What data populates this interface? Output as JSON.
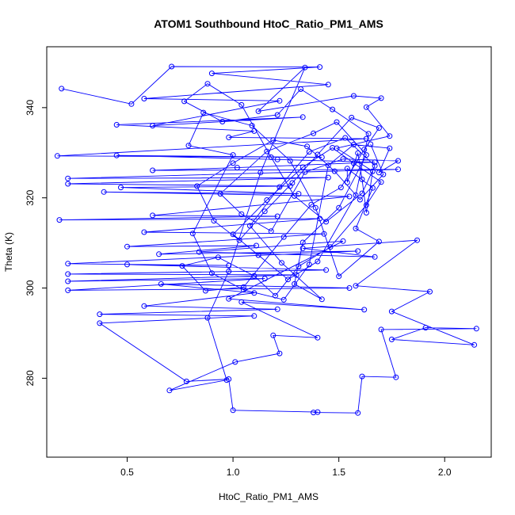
{
  "chart_data": {
    "type": "scatter",
    "title": "ATOM1 Southbound HtoC_Ratio_PM1_AMS",
    "xlabel": "HtoC_Ratio_PM1_AMS",
    "ylabel": "Theta (K)",
    "xlim": [
      0.12,
      2.22
    ],
    "ylim": [
      262.5,
      353.5
    ],
    "x_ticks": [
      0.5,
      1.0,
      1.5,
      2.0
    ],
    "x_tick_labels": [
      "0.5",
      "1.0",
      "1.5",
      "2.0"
    ],
    "y_ticks": [
      280,
      300,
      320,
      340
    ],
    "y_tick_labels": [
      "280",
      "300",
      "320",
      "340"
    ],
    "grid": false,
    "legend": "none",
    "connected": true,
    "color": "#0000ff",
    "series": [
      {
        "points": [
          [
            0.19,
            344.2
          ],
          [
            0.52,
            340.8
          ],
          [
            0.71,
            349.1
          ],
          [
            1.41,
            349.0
          ],
          [
            0.9,
            347.6
          ],
          [
            1.45,
            345.1
          ],
          [
            0.58,
            342.0
          ],
          [
            1.22,
            341.5
          ],
          [
            0.62,
            336.0
          ],
          [
            1.33,
            337.9
          ],
          [
            0.45,
            336.2
          ],
          [
            1.1,
            334.8
          ],
          [
            0.98,
            333.4
          ],
          [
            1.63,
            333.1
          ],
          [
            0.17,
            329.3
          ],
          [
            1.42,
            329.0
          ],
          [
            0.45,
            329.4
          ],
          [
            1.21,
            328.5
          ],
          [
            1.67,
            327.9
          ],
          [
            1.02,
            326.7
          ],
          [
            0.62,
            326.1
          ],
          [
            1.78,
            326.3
          ],
          [
            0.22,
            324.3
          ],
          [
            1.45,
            324.5
          ],
          [
            0.22,
            323.1
          ],
          [
            1.27,
            322.6
          ],
          [
            0.47,
            322.3
          ],
          [
            1.31,
            320.9
          ],
          [
            0.39,
            321.3
          ],
          [
            1.55,
            320.3
          ],
          [
            0.62,
            316.1
          ],
          [
            1.21,
            315.9
          ],
          [
            0.18,
            315.1
          ],
          [
            1.41,
            315.4
          ],
          [
            0.58,
            312.4
          ],
          [
            1.43,
            312.0
          ],
          [
            0.5,
            309.2
          ],
          [
            1.11,
            309.4
          ],
          [
            0.65,
            307.5
          ],
          [
            1.59,
            308.2
          ],
          [
            0.22,
            305.4
          ],
          [
            0.98,
            305.0
          ],
          [
            0.5,
            305.2
          ],
          [
            1.44,
            304.0
          ],
          [
            0.22,
            303.1
          ],
          [
            1.3,
            302.9
          ],
          [
            0.22,
            301.5
          ],
          [
            1.15,
            302.1
          ],
          [
            0.22,
            299.5
          ],
          [
            1.55,
            300.0
          ],
          [
            0.66,
            300.9
          ],
          [
            1.1,
            298.9
          ],
          [
            0.58,
            296.0
          ],
          [
            1.21,
            295.3
          ],
          [
            0.37,
            294.2
          ],
          [
            1.1,
            293.8
          ],
          [
            0.37,
            292.2
          ],
          [
            0.78,
            279.3
          ],
          [
            0.98,
            279.8
          ],
          [
            1.0,
            272.9
          ],
          [
            1.4,
            272.5
          ],
          [
            1.38,
            272.4
          ],
          [
            1.59,
            272.3
          ],
          [
            1.61,
            280.4
          ],
          [
            1.77,
            280.2
          ],
          [
            1.7,
            290.8
          ],
          [
            2.15,
            291.0
          ],
          [
            1.91,
            291.2
          ],
          [
            1.75,
            288.6
          ],
          [
            2.14,
            287.4
          ],
          [
            1.75,
            294.8
          ],
          [
            1.93,
            299.2
          ],
          [
            1.58,
            300.5
          ],
          [
            1.87,
            310.6
          ],
          [
            1.33,
            308.8
          ],
          [
            1.67,
            306.9
          ],
          [
            0.84,
            308.0
          ],
          [
            1.52,
            310.4
          ],
          [
            0.98,
            297.6
          ],
          [
            1.62,
            295.2
          ],
          [
            1.04,
            296.9
          ],
          [
            1.4,
            289.0
          ],
          [
            1.19,
            289.5
          ],
          [
            1.22,
            285.5
          ],
          [
            1.01,
            283.6
          ],
          [
            0.7,
            277.3
          ],
          [
            0.97,
            279.6
          ],
          [
            0.88,
            293.4
          ],
          [
            0.98,
            303.7
          ],
          [
            1.13,
            325.6
          ],
          [
            1.34,
            348.9
          ],
          [
            1.12,
            339.2
          ],
          [
            1.57,
            342.6
          ],
          [
            1.7,
            342.1
          ],
          [
            1.63,
            340.1
          ],
          [
            1.74,
            333.7
          ],
          [
            1.49,
            331.0
          ],
          [
            1.66,
            325.9
          ],
          [
            1.63,
            316.7
          ],
          [
            1.61,
            324.1
          ],
          [
            1.59,
            329.9
          ],
          [
            1.54,
            323.4
          ],
          [
            1.54,
            326.5
          ],
          [
            1.66,
            322.2
          ],
          [
            1.58,
            313.2
          ],
          [
            1.69,
            310.3
          ],
          [
            1.5,
            302.6
          ],
          [
            1.39,
            317.8
          ],
          [
            1.27,
            328.2
          ],
          [
            1.09,
            336.0
          ],
          [
            0.86,
            338.9
          ],
          [
            0.79,
            331.6
          ],
          [
            1.0,
            329.5
          ],
          [
            0.81,
            312.1
          ],
          [
            0.9,
            303.3
          ],
          [
            1.05,
            299.6
          ],
          [
            1.24,
            297.4
          ],
          [
            1.36,
            305.2
          ],
          [
            1.45,
            327.2
          ],
          [
            1.57,
            331.8
          ],
          [
            1.74,
            331.0
          ],
          [
            1.69,
            325.6
          ],
          [
            1.78,
            328.2
          ],
          [
            1.52,
            328.6
          ],
          [
            1.34,
            325.7
          ],
          [
            1.18,
            312.6
          ],
          [
            1.04,
            316.4
          ],
          [
            0.94,
            320.9
          ],
          [
            1.16,
            330.3
          ],
          [
            1.38,
            334.3
          ],
          [
            1.49,
            336.8
          ],
          [
            1.63,
            329.5
          ],
          [
            1.5,
            317.8
          ],
          [
            1.33,
            310.1
          ],
          [
            1.29,
            300.9
          ],
          [
            1.42,
            297.5
          ],
          [
            1.23,
            305.6
          ],
          [
            1.08,
            313.8
          ],
          [
            1.22,
            322.4
          ],
          [
            1.36,
            330.2
          ],
          [
            1.53,
            333.3
          ],
          [
            1.67,
            327.1
          ],
          [
            1.61,
            321.0
          ],
          [
            1.44,
            314.7
          ],
          [
            1.29,
            320.4
          ],
          [
            1.18,
            329.0
          ],
          [
            1.04,
            340.6
          ],
          [
            0.88,
            345.3
          ],
          [
            0.77,
            341.4
          ],
          [
            0.95,
            336.9
          ],
          [
            1.21,
            338.4
          ],
          [
            1.32,
            344.1
          ],
          [
            1.47,
            339.6
          ],
          [
            1.64,
            334.2
          ],
          [
            1.58,
            320.6
          ],
          [
            1.4,
            305.9
          ],
          [
            1.26,
            301.9
          ],
          [
            1.12,
            307.3
          ],
          [
            1.0,
            311.9
          ],
          [
            1.16,
            319.5
          ],
          [
            1.33,
            326.8
          ],
          [
            1.47,
            331.1
          ],
          [
            1.57,
            327.7
          ],
          [
            1.7,
            323.5
          ],
          [
            1.63,
            318.4
          ],
          [
            1.46,
            309.1
          ],
          [
            1.31,
            304.8
          ],
          [
            1.2,
            298.3
          ],
          [
            1.1,
            302.7
          ],
          [
            0.93,
            306.8
          ],
          [
            0.76,
            304.9
          ],
          [
            0.87,
            299.4
          ],
          [
            1.05,
            300.2
          ],
          [
            1.24,
            311.3
          ],
          [
            1.37,
            318.5
          ],
          [
            1.51,
            322.3
          ],
          [
            1.62,
            330.7
          ],
          [
            1.69,
            335.5
          ],
          [
            1.56,
            337.8
          ],
          [
            1.4,
            329.6
          ],
          [
            1.28,
            323.3
          ],
          [
            1.15,
            317.0
          ],
          [
            1.03,
            310.6
          ],
          [
            0.91,
            314.9
          ],
          [
            0.83,
            322.6
          ],
          [
            1.0,
            327.7
          ],
          [
            1.19,
            332.8
          ],
          [
            1.35,
            331.4
          ],
          [
            1.48,
            325.9
          ],
          [
            1.6,
            319.6
          ],
          [
            1.71,
            325.2
          ],
          [
            1.65,
            331.9
          ]
        ]
      }
    ]
  }
}
